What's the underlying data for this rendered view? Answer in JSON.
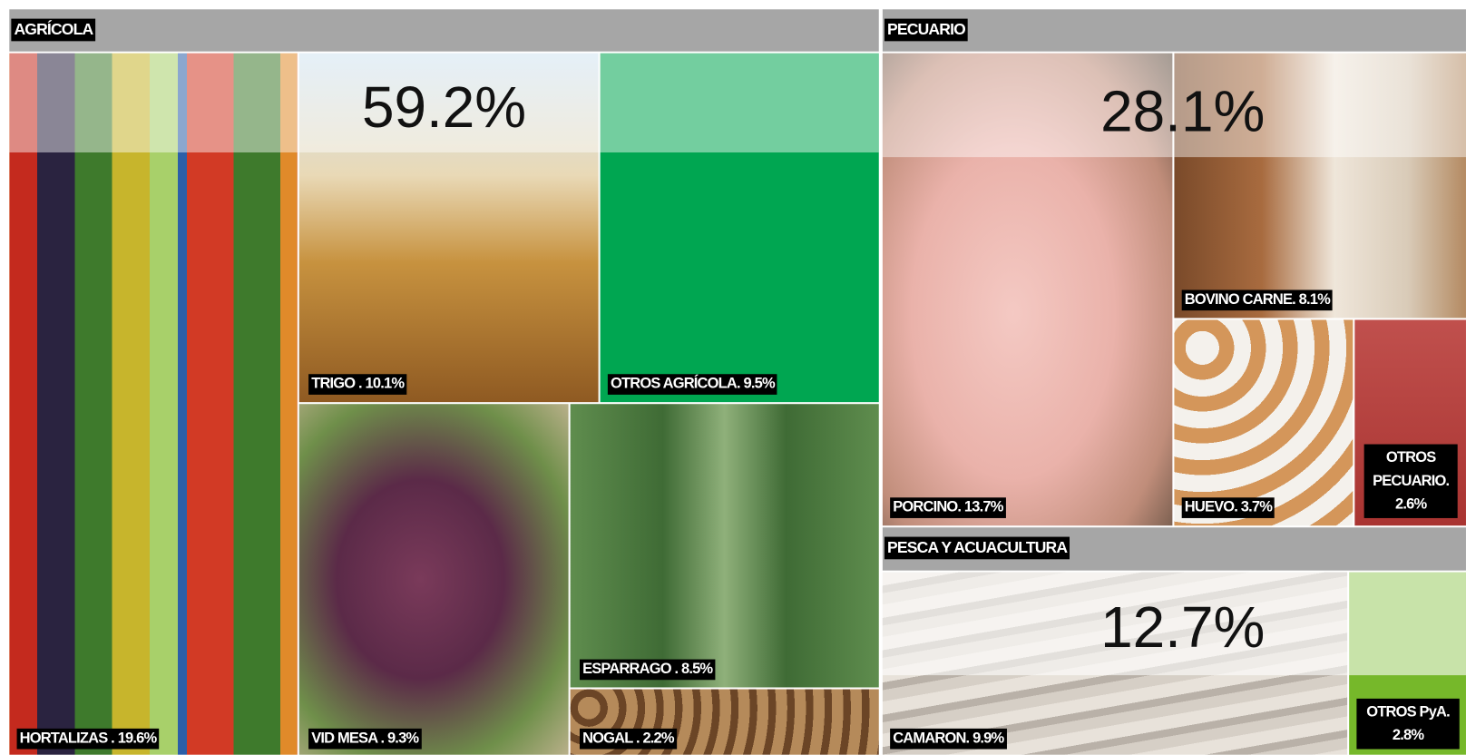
{
  "sections": [
    {
      "title": "AGRÍCOLA",
      "total": "59.2%",
      "tiles": [
        {
          "label": "HORTALIZAS . 19.6%"
        },
        {
          "label": "TRIGO . 10.1%"
        },
        {
          "label": "OTROS AGRÍCOLA. 9.5%"
        },
        {
          "label": "VID MESA . 9.3%"
        },
        {
          "label": "ESPARRAGO . 8.5%"
        },
        {
          "label": "NOGAL . 2.2%"
        }
      ]
    },
    {
      "title": "PECUARIO",
      "total": "28.1%",
      "tiles": [
        {
          "label": "PORCINO. 13.7%"
        },
        {
          "label": "BOVINO CARNE. 8.1%"
        },
        {
          "label": "HUEVO. 3.7%"
        },
        {
          "label": "OTROS PECUARIO. 2.6%"
        }
      ]
    },
    {
      "title": "PESCA Y ACUACULTURA",
      "total": "12.7%",
      "tiles": [
        {
          "label": "CAMARON. 9.9%"
        },
        {
          "label": "OTROS PyA. 2.8%"
        }
      ]
    }
  ]
}
